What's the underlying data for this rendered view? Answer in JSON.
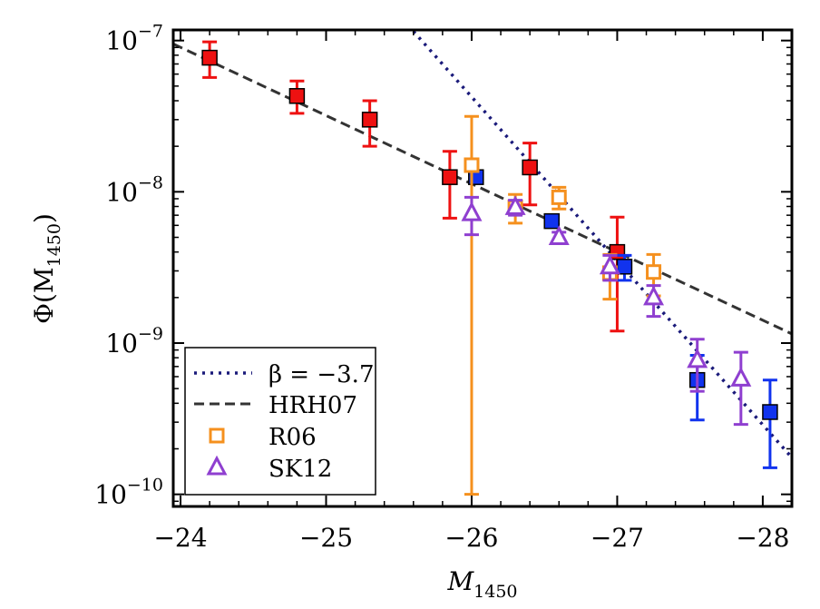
{
  "chart_data": {
    "type": "scatter",
    "title": "",
    "xlabel": "M",
    "xlabel_sub": "1450",
    "ylabel": "Φ(M",
    "ylabel_sub": "1450",
    "ylabel_close": ")",
    "xlim": [
      -23.95,
      -28.2
    ],
    "ylim_log10": [
      -10.08,
      -6.93
    ],
    "y_scale": "log",
    "x_ticks": [
      {
        "value": -24,
        "label": "−24"
      },
      {
        "value": -25,
        "label": "−25"
      },
      {
        "value": -26,
        "label": "−26"
      },
      {
        "value": -27,
        "label": "−27"
      },
      {
        "value": -28,
        "label": "−28"
      }
    ],
    "y_ticks": [
      {
        "exp": -7,
        "base": "10",
        "sup": "−7"
      },
      {
        "exp": -8,
        "base": "10",
        "sup": "−8"
      },
      {
        "exp": -9,
        "base": "10",
        "sup": "−9"
      },
      {
        "exp": -10,
        "base": "10",
        "sup": "−10"
      }
    ],
    "lines": [
      {
        "name": "β = −3.7",
        "style": "dotted",
        "color": "#1a1a7a",
        "points": [
          [
            -25.6,
            1.15e-07
          ],
          [
            -28.2,
            1.75e-10
          ]
        ]
      },
      {
        "name": "HRH07",
        "style": "dashed",
        "color": "#333333",
        "points": [
          [
            -23.95,
            9.5e-08
          ],
          [
            -28.2,
            1.15e-09
          ]
        ]
      }
    ],
    "series": [
      {
        "marker": "filled-square",
        "color": "#ee1111",
        "edge": "#000000",
        "points": [
          {
            "x": -24.2,
            "y": 7.7e-08,
            "lo": 5.7e-08,
            "hi": 9.8e-08
          },
          {
            "x": -24.8,
            "y": 4.3e-08,
            "lo": 3.3e-08,
            "hi": 5.4e-08
          },
          {
            "x": -25.3,
            "y": 3e-08,
            "lo": 2e-08,
            "hi": 4e-08
          },
          {
            "x": -25.85,
            "y": 1.25e-08,
            "lo": 6.7e-09,
            "hi": 1.85e-08
          },
          {
            "x": -26.4,
            "y": 1.45e-08,
            "lo": 8.2e-09,
            "hi": 2.1e-08
          },
          {
            "x": -27.0,
            "y": 4e-09,
            "lo": 1.2e-09,
            "hi": 6.8e-09
          }
        ]
      },
      {
        "marker": "filled-square",
        "color": "#1133ee",
        "edge": "#000000",
        "points": [
          {
            "x": -26.03,
            "y": 1.25e-08,
            "lo": 1.15e-08,
            "hi": 1.35e-08
          },
          {
            "x": -26.55,
            "y": 6.4e-09,
            "lo": 5.9e-09,
            "hi": 6.9e-09
          },
          {
            "x": -27.05,
            "y": 3.2e-09,
            "lo": 2.6e-09,
            "hi": 3.8e-09
          },
          {
            "x": -27.55,
            "y": 5.7e-10,
            "lo": 3.1e-10,
            "hi": 8.3e-10
          },
          {
            "x": -28.05,
            "y": 3.5e-10,
            "lo": 1.5e-10,
            "hi": 5.7e-10
          }
        ]
      },
      {
        "name": "R06",
        "marker": "open-square",
        "color": "#f5901e",
        "points": [
          {
            "x": -26.0,
            "y": 1.5e-08,
            "lo": 1e-10,
            "hi": 3.15e-08
          },
          {
            "x": -26.3,
            "y": 7.9e-09,
            "lo": 6.2e-09,
            "hi": 9.6e-09
          },
          {
            "x": -26.6,
            "y": 9.2e-09,
            "lo": 7.7e-09,
            "hi": 1.07e-08
          },
          {
            "x": -26.95,
            "y": 2.9e-09,
            "lo": 1.95e-09,
            "hi": 3.85e-09
          },
          {
            "x": -27.25,
            "y": 2.95e-09,
            "lo": 2.05e-09,
            "hi": 3.85e-09
          }
        ]
      },
      {
        "name": "SK12",
        "marker": "open-triangle",
        "color": "#8f3fd0",
        "points": [
          {
            "x": -26.0,
            "y": 7.2e-09,
            "lo": 5.2e-09,
            "hi": 9.2e-09
          },
          {
            "x": -26.3,
            "y": 7.9e-09,
            "lo": 7e-09,
            "hi": 8.8e-09
          },
          {
            "x": -26.6,
            "y": 5e-09,
            "lo": 4.6e-09,
            "hi": 5.4e-09
          },
          {
            "x": -26.95,
            "y": 3.2e-09,
            "lo": 2.6e-09,
            "hi": 3.8e-09
          },
          {
            "x": -27.25,
            "y": 2e-09,
            "lo": 1.5e-09,
            "hi": 2.4e-09
          },
          {
            "x": -27.55,
            "y": 7.7e-10,
            "lo": 4.8e-10,
            "hi": 1.06e-09
          },
          {
            "x": -27.85,
            "y": 5.8e-10,
            "lo": 2.9e-10,
            "hi": 8.7e-10
          }
        ]
      }
    ],
    "legend": {
      "placement": "bottom-left",
      "entries": [
        {
          "label": "β = −3.7",
          "key": "dotted",
          "color": "#1a1a7a"
        },
        {
          "label": "HRH07",
          "key": "dashed",
          "color": "#333333"
        },
        {
          "label": "R06",
          "key": "open-square",
          "color": "#f5901e"
        },
        {
          "label": "SK12",
          "key": "open-triangle",
          "color": "#8f3fd0"
        }
      ]
    },
    "grid": false
  }
}
